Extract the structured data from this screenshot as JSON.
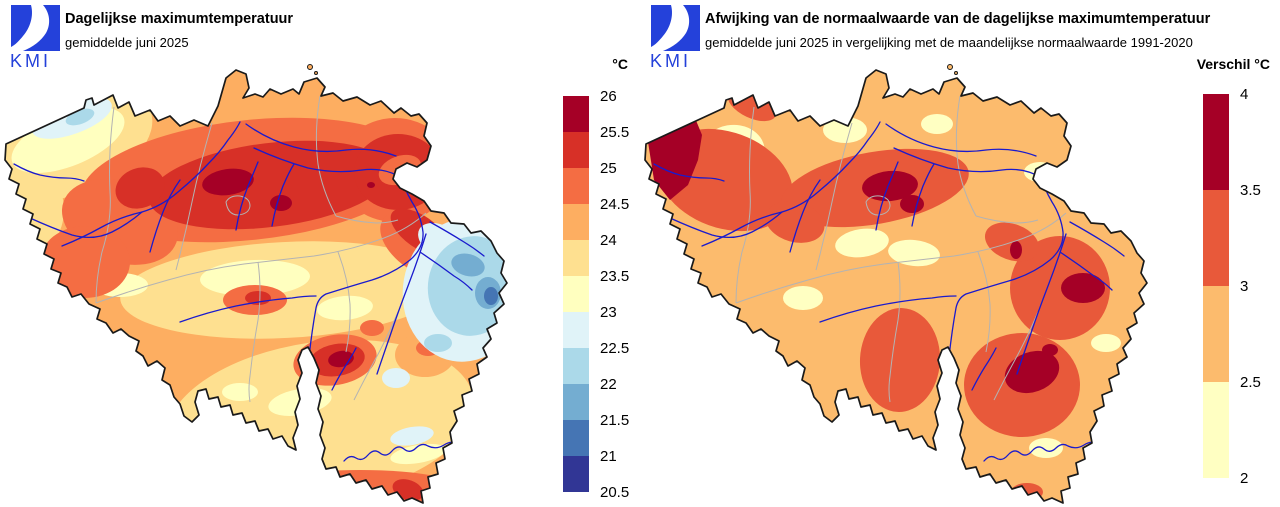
{
  "logo": {
    "text": "KMI"
  },
  "colors": {
    "logo_blue": "#2441da",
    "river": "#1a1acd",
    "province_border": "#b3b3b3",
    "country_border": "#1a1a1a",
    "temp_scale": [
      "#a50026",
      "#d73027",
      "#f46d43",
      "#fdae61",
      "#fee090",
      "#ffffbf",
      "#e0f3f8",
      "#abd9e9",
      "#74add1",
      "#4575b4",
      "#313695"
    ],
    "anomaly_scale": [
      "#a50026",
      "#e8593a",
      "#fcbb6d",
      "#ffffc2"
    ]
  },
  "left_panel": {
    "title": "Dagelijkse maximumtemperatuur",
    "subtitle": "gemiddelde juni 2025",
    "colorbar": {
      "unit_label": "°C",
      "palette": "temp_scale",
      "tick_labels": [
        "26",
        "25.5",
        "25",
        "24.5",
        "24",
        "23.5",
        "23",
        "22.5",
        "22",
        "21.5",
        "21",
        "20.5"
      ]
    }
  },
  "right_panel": {
    "title": "Afwijking van de normaalwaarde van de dagelijkse maximumtemperatuur",
    "subtitle": "gemiddelde juni 2025 in vergelijking met de maandelijkse normaalwaarde 1991-2020",
    "colorbar": {
      "unit_label": "Verschil °C",
      "palette": "anomaly_scale",
      "tick_labels": [
        "4",
        "3.5",
        "3",
        "2.5",
        "2"
      ]
    }
  }
}
